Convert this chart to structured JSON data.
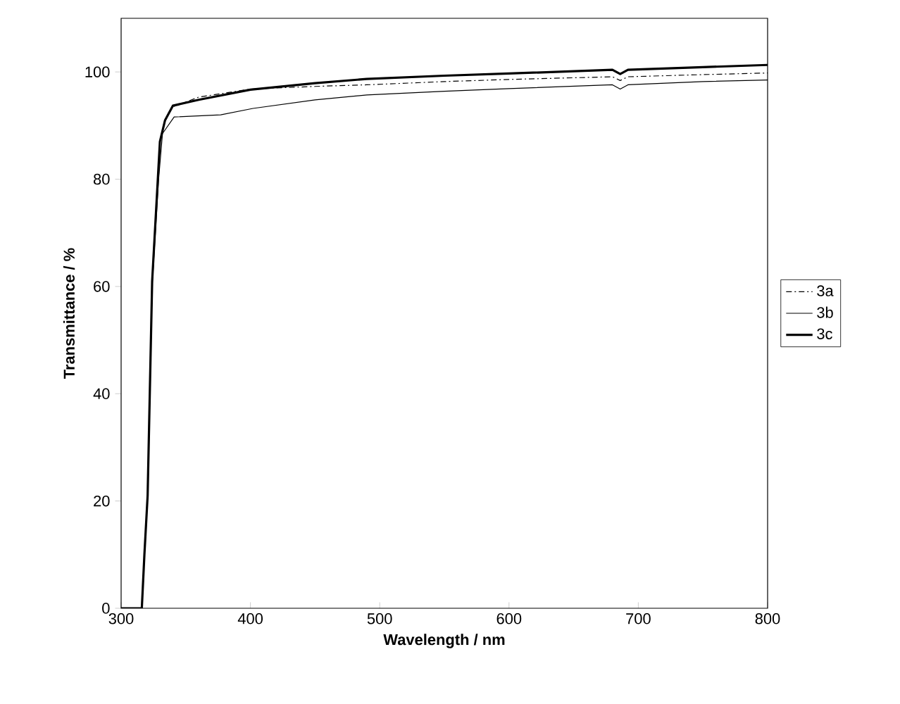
{
  "chart_data": {
    "type": "line",
    "xlabel": "Wavelength / nm",
    "ylabel": "Transmittance / %",
    "xlim": [
      300,
      800
    ],
    "xticks": [
      300,
      400,
      500,
      600,
      700,
      800
    ],
    "ylim": [
      0,
      110
    ],
    "yticks": [
      0,
      20,
      40,
      60,
      80,
      100
    ],
    "grid": false,
    "legend": "right",
    "marker": "none",
    "series": [
      {
        "name": "3a",
        "color": "#000000",
        "line_style": "dashdot",
        "x": [
          300,
          316,
          318,
          320.5,
          324,
          330,
          334,
          340,
          360,
          400,
          450,
          490,
          550,
          600,
          680,
          686,
          692,
          750,
          800
        ],
        "values": [
          0,
          0,
          10,
          21,
          61,
          87,
          91,
          93.5,
          95.3,
          96.8,
          97.3,
          97.6,
          98.2,
          98.6,
          99.1,
          98.4,
          99.1,
          99.5,
          99.8
        ]
      },
      {
        "name": "3b",
        "color": "#000000",
        "line_style": "solid",
        "x": [
          300,
          316,
          318,
          320.5,
          324,
          329,
          332,
          341,
          377,
          402,
          450,
          490,
          550,
          600,
          680,
          686,
          692,
          750,
          800
        ],
        "values": [
          0,
          0,
          10,
          21,
          60,
          80,
          88.5,
          91.6,
          92,
          93.2,
          94.8,
          95.7,
          96.4,
          96.9,
          97.6,
          96.8,
          97.6,
          98.2,
          98.5
        ]
      },
      {
        "name": "3c",
        "color": "#000000",
        "line_style": "solid",
        "x": [
          300,
          316,
          318,
          320.5,
          324,
          330,
          334,
          340,
          360,
          400,
          450,
          490,
          550,
          600,
          680,
          686,
          692,
          750,
          800
        ],
        "values": [
          0,
          0,
          10,
          21,
          61,
          87,
          91,
          93.7,
          94.8,
          96.7,
          97.9,
          98.7,
          99.3,
          99.7,
          100.4,
          99.6,
          100.4,
          100.9,
          101.3
        ]
      }
    ]
  }
}
